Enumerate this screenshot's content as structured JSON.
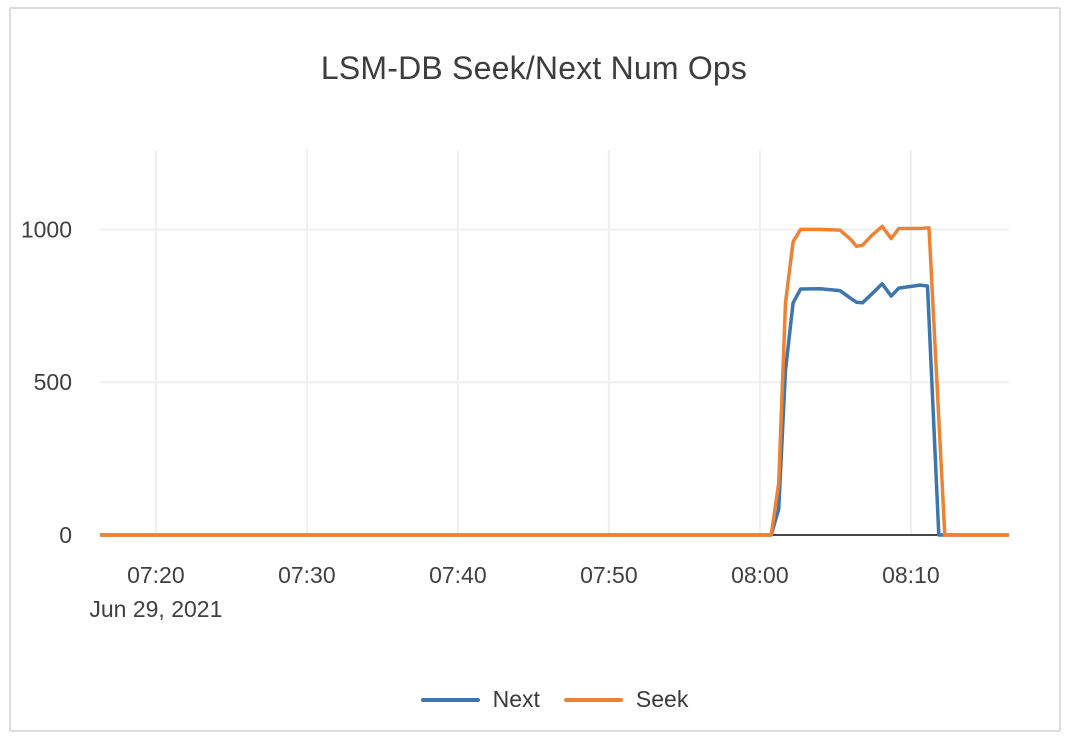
{
  "card": {
    "background": "#ffffff",
    "border_color": "#dcdcdc"
  },
  "chart_data": {
    "type": "line",
    "title": "LSM-DB Seek/Next Num Ops",
    "xlabel": "",
    "ylabel": "",
    "x_unit": "time of day (HH:MM), encoded below as minutes after 07:00",
    "x_date_label": "Jun 29, 2021",
    "xlim": [
      16.3,
      76.5
    ],
    "ylim": [
      0,
      1260
    ],
    "grid": true,
    "legend_position": "bottom-center",
    "grid_color": "#efefef",
    "axis_line_color": "#474747",
    "text_color": "#404040",
    "x_ticks": [
      {
        "value": 20,
        "label": "07:20"
      },
      {
        "value": 30,
        "label": "07:30"
      },
      {
        "value": 40,
        "label": "07:40"
      },
      {
        "value": 50,
        "label": "07:50"
      },
      {
        "value": 60,
        "label": "08:00"
      },
      {
        "value": 70,
        "label": "08:10"
      }
    ],
    "y_ticks": [
      {
        "value": 0,
        "label": "0"
      },
      {
        "value": 500,
        "label": "500"
      },
      {
        "value": 1000,
        "label": "1000"
      }
    ],
    "series": [
      {
        "name": "Next",
        "color": "#3d76ad",
        "points": [
          [
            16.3,
            0
          ],
          [
            60.75,
            0
          ],
          [
            61.25,
            85
          ],
          [
            61.7,
            540
          ],
          [
            62.2,
            760
          ],
          [
            62.7,
            805
          ],
          [
            64.0,
            806
          ],
          [
            65.3,
            800
          ],
          [
            66.0,
            775
          ],
          [
            66.4,
            762
          ],
          [
            66.8,
            760
          ],
          [
            67.4,
            788
          ],
          [
            68.1,
            822
          ],
          [
            68.7,
            782
          ],
          [
            69.2,
            808
          ],
          [
            70.6,
            818
          ],
          [
            71.1,
            815
          ],
          [
            71.85,
            0
          ],
          [
            76.5,
            0
          ]
        ]
      },
      {
        "name": "Seek",
        "color": "#ee8234",
        "points": [
          [
            16.3,
            0
          ],
          [
            60.75,
            0
          ],
          [
            61.25,
            170
          ],
          [
            61.7,
            760
          ],
          [
            62.2,
            960
          ],
          [
            62.7,
            1000
          ],
          [
            64.0,
            1000
          ],
          [
            65.3,
            998
          ],
          [
            66.0,
            968
          ],
          [
            66.4,
            945
          ],
          [
            66.8,
            948
          ],
          [
            67.4,
            980
          ],
          [
            68.1,
            1010
          ],
          [
            68.7,
            970
          ],
          [
            69.2,
            1003
          ],
          [
            70.6,
            1003
          ],
          [
            71.2,
            1005
          ],
          [
            72.25,
            0
          ],
          [
            76.5,
            0
          ]
        ]
      }
    ]
  }
}
